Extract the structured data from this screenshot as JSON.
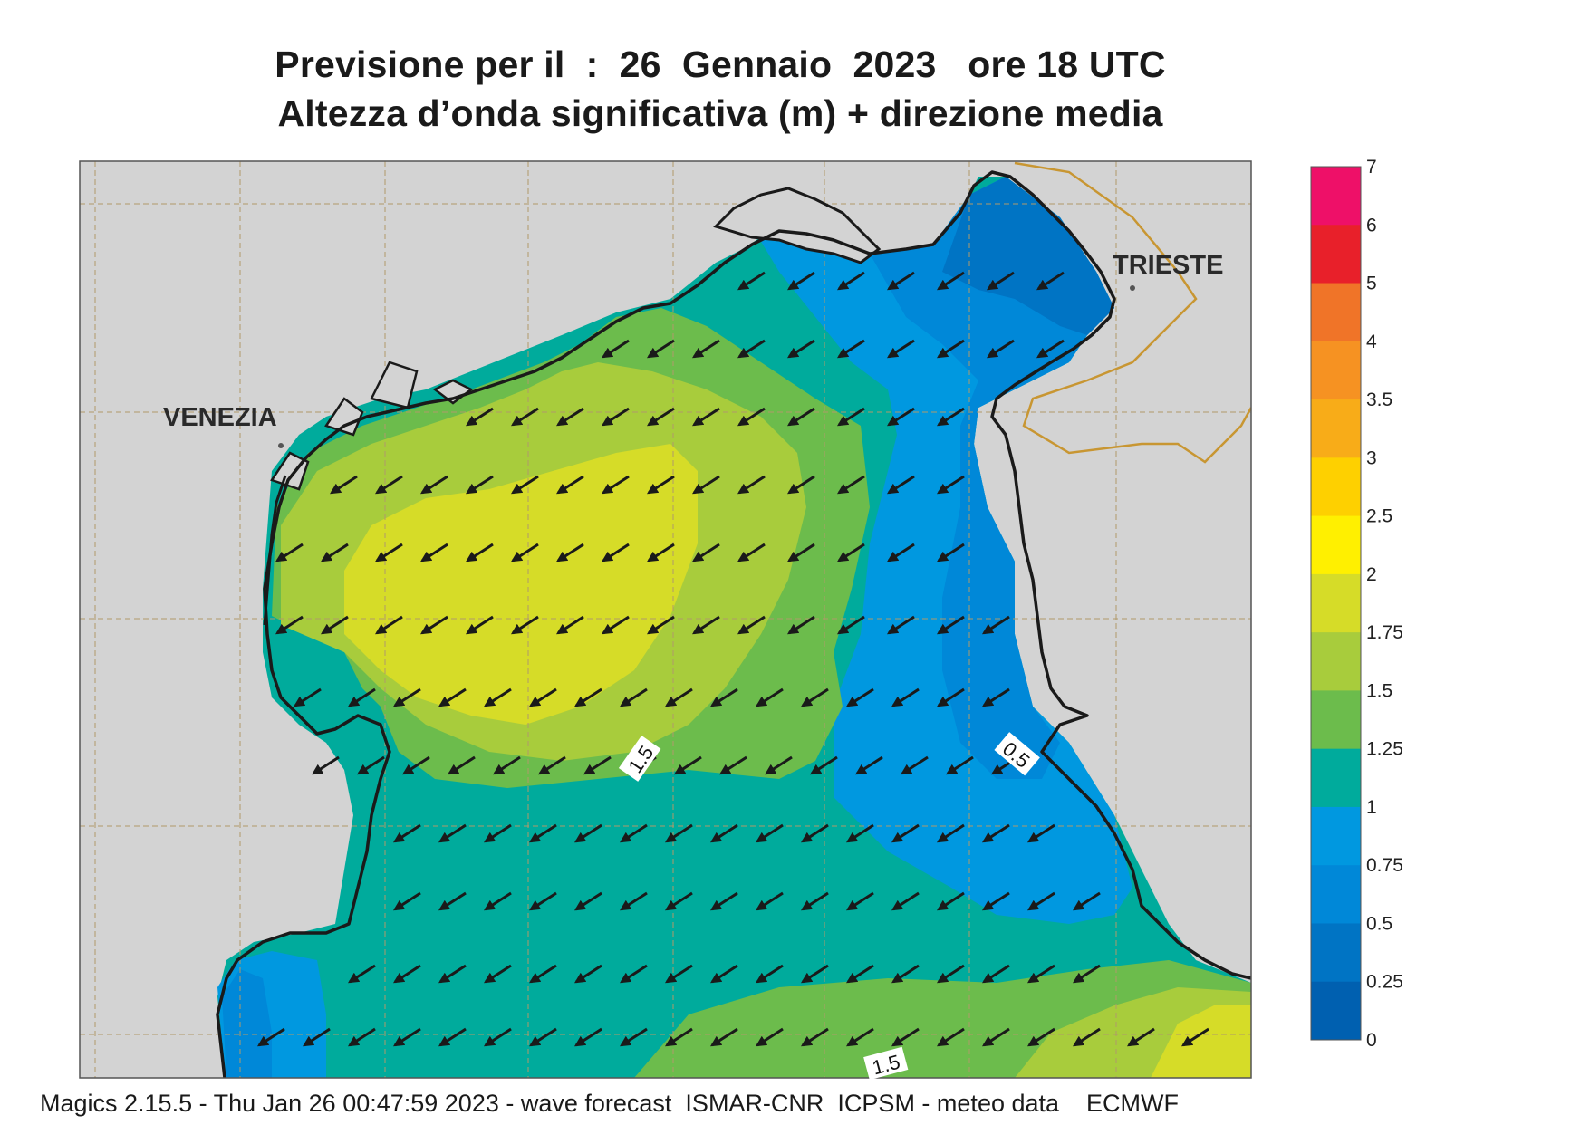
{
  "title": {
    "line1": "Previsione per il  :  26  Gennaio  2023   ore 18 UTC",
    "line2": "Altezza d’onda significativa (m) + direzione media"
  },
  "cities": {
    "venezia": "VENEZIA",
    "trieste": "TRIESTE"
  },
  "contour_labels": [
    "1.5",
    "0.5",
    "1.5"
  ],
  "colorbar": {
    "labels": [
      "7",
      "6",
      "5",
      "4",
      "3.5",
      "3",
      "2.5",
      "2",
      "1.75",
      "1.5",
      "1.25",
      "1",
      "0.75",
      "0.5",
      "0.25",
      "0"
    ],
    "colors": [
      "#ee1068",
      "#e8202a",
      "#f07428",
      "#f69222",
      "#f8ac18",
      "#fed000",
      "#fff000",
      "#d6dc28",
      "#a8cc3c",
      "#6cbc4c",
      "#00ab9c",
      "#0098e0",
      "#0088d8",
      "#0074c4",
      "#0060b0"
    ]
  },
  "footer": "Magics 2.15.5 - Thu Jan 26 00:47:59 2023 - wave forecast  ISMAR-CNR  ICPSM - meteo data    ECMWF",
  "wave_direction_arrow": "south-west-arrow-icon"
}
